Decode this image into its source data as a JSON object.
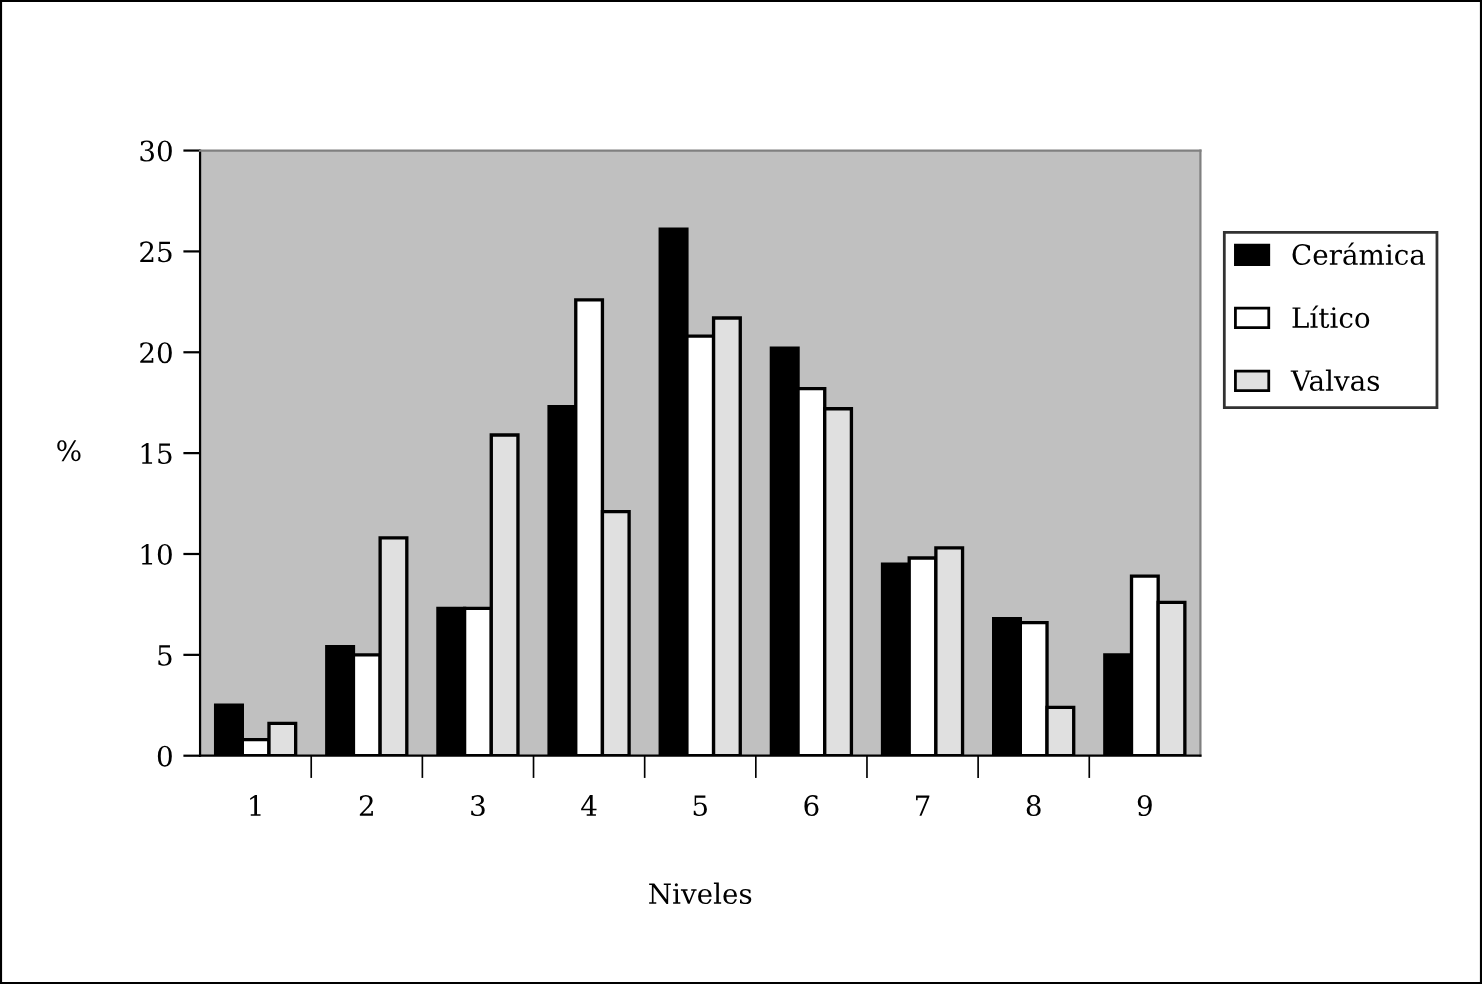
{
  "chart_data": {
    "type": "bar",
    "xlabel": "Niveles",
    "ylabel": "%",
    "categories": [
      "1",
      "2",
      "3",
      "4",
      "5",
      "6",
      "7",
      "8",
      "9"
    ],
    "series": [
      {
        "name": "Cerámica",
        "color": "#000000",
        "values": [
          2.5,
          5.4,
          7.3,
          17.3,
          26.1,
          20.2,
          9.5,
          6.8,
          5.0
        ]
      },
      {
        "name": "Lítico",
        "color": "#ffffff",
        "values": [
          0.8,
          5.0,
          7.3,
          22.6,
          20.8,
          18.2,
          9.8,
          6.6,
          8.9
        ]
      },
      {
        "name": "Valvas",
        "color": "#e0e0e0",
        "values": [
          1.6,
          10.8,
          15.9,
          12.1,
          21.7,
          17.2,
          10.3,
          2.4,
          7.6
        ]
      }
    ],
    "ylim": [
      0,
      30
    ],
    "yticks": [
      0,
      5,
      10,
      15,
      20,
      25,
      30
    ],
    "grid": false,
    "legend": "right"
  }
}
